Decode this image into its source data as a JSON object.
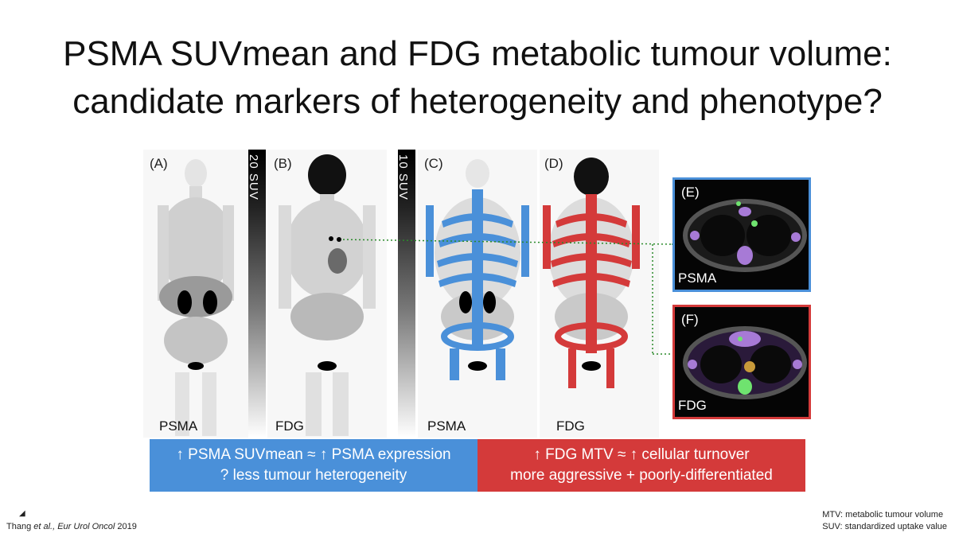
{
  "slide": {
    "title_line1": "PSMA SUVmean and FDG metabolic tumour volume:",
    "title_line2": "candidate markers of heterogeneity and phenotype?"
  },
  "figure": {
    "panels": [
      {
        "label": "(A)",
        "tracer": "PSMA"
      },
      {
        "label": "(B)",
        "tracer": "FDG"
      },
      {
        "label": "(C)",
        "tracer": "PSMA"
      },
      {
        "label": "(D)",
        "tracer": "FDG"
      }
    ],
    "scale1": "20 SUV",
    "scale2": "10 SUV",
    "ct_e": {
      "label": "(E)",
      "tracer": "PSMA"
    },
    "ct_f": {
      "label": "(F)",
      "tracer": "FDG"
    },
    "colors": {
      "psma": "#4a90d9",
      "fdg": "#d43a3a"
    }
  },
  "banner_left": {
    "line1": "↑ PSMA SUVmean ≈ ↑ PSMA expression",
    "line2": "? less tumour heterogeneity",
    "color": "#4a90d9"
  },
  "banner_right": {
    "line1": "↑ FDG MTV ≈ ↑ cellular turnover",
    "line2": "more aggressive + poorly-differentiated",
    "color": "#d43a3a"
  },
  "citation": {
    "authors": "Thang ",
    "etal": "et al.,",
    "journal": " Eur Urol Oncol ",
    "year": "2019"
  },
  "abbreviations": {
    "mtv": "MTV: metabolic tumour volume",
    "suv": "SUV: standardized uptake value"
  }
}
